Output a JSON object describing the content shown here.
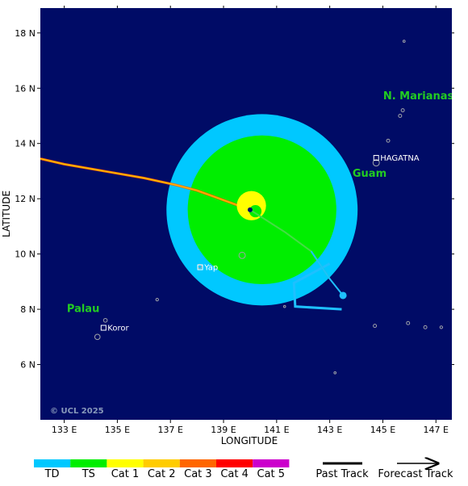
{
  "colors": {
    "ocean": "#000b66",
    "land": "#9fa3a8",
    "tropical_storm_radius": "#00c8ff",
    "hurricane_radius": "#00ee00",
    "region_label": "#22cc22",
    "past_track_line": "#ff6600",
    "forecast_track_line": "#1ec0ff"
  },
  "axes": {
    "xlabel": "LONGITUDE",
    "ylabel": "LATITUDE",
    "x_ticks": [
      "133 E",
      "135 E",
      "137 E",
      "139 E",
      "141 E",
      "143 E",
      "145 E",
      "147 E"
    ],
    "y_ticks": [
      "18 N",
      "16 N",
      "14 N",
      "12 N",
      "10 N",
      "8 N",
      "6 N"
    ]
  },
  "map": {
    "lon_range": [
      132.1,
      147.6
    ],
    "lat_range": [
      4.0,
      18.9
    ],
    "region_labels": [
      {
        "text": "N. Marianas Is",
        "lon": 146.6,
        "lat": 15.6,
        "anchor": "middle"
      },
      {
        "text": "Guam",
        "lon": 144.5,
        "lat": 12.8,
        "anchor": "middle"
      },
      {
        "text": "Palau",
        "lon": 133.1,
        "lat": 7.9,
        "anchor": "start"
      }
    ],
    "cities": [
      {
        "name": "HAGATNA",
        "lon": 144.75,
        "lat": 13.48
      },
      {
        "name": "Yap",
        "lon": 138.12,
        "lat": 9.52
      },
      {
        "name": "Koror",
        "lon": 134.48,
        "lat": 7.33
      }
    ],
    "islands": [
      {
        "lon": 144.75,
        "lat": 13.3,
        "r": 0.12
      },
      {
        "lon": 145.2,
        "lat": 14.1,
        "r": 0.06
      },
      {
        "lon": 145.65,
        "lat": 15.0,
        "r": 0.06
      },
      {
        "lon": 145.75,
        "lat": 15.2,
        "r": 0.06
      },
      {
        "lon": 145.8,
        "lat": 17.7,
        "r": 0.04
      },
      {
        "lon": 139.7,
        "lat": 9.95,
        "r": 0.12
      },
      {
        "lon": 138.1,
        "lat": 9.55,
        "r": 0.08
      },
      {
        "lon": 134.25,
        "lat": 7.0,
        "r": 0.1
      },
      {
        "lon": 134.55,
        "lat": 7.6,
        "r": 0.07
      },
      {
        "lon": 144.7,
        "lat": 7.4,
        "r": 0.06
      },
      {
        "lon": 145.95,
        "lat": 7.5,
        "r": 0.06
      },
      {
        "lon": 146.6,
        "lat": 7.35,
        "r": 0.06
      },
      {
        "lon": 147.2,
        "lat": 7.35,
        "r": 0.05
      },
      {
        "lon": 136.5,
        "lat": 8.35,
        "r": 0.05
      },
      {
        "lon": 141.3,
        "lat": 8.1,
        "r": 0.04
      },
      {
        "lon": 143.2,
        "lat": 5.7,
        "r": 0.04
      }
    ],
    "copyright": "© UCL 2025"
  },
  "storm": {
    "center": {
      "lon": 140.0,
      "lat": 11.6
    },
    "tropical_storm_wind_radius_deg": 3.6,
    "hurricane_wind_radius_deg": 2.8,
    "wind_radii_center": {
      "lon": 140.45,
      "lat": 11.6
    },
    "intensity_marker": {
      "lon": 140.05,
      "lat": 11.75,
      "r_deg": 0.55
    },
    "past_track": [
      [
        132.1,
        13.45
      ],
      [
        133.0,
        13.25
      ],
      [
        134.5,
        13.0
      ],
      [
        136.0,
        12.75
      ],
      [
        137.2,
        12.5
      ],
      [
        138.0,
        12.3
      ],
      [
        139.0,
        11.95
      ],
      [
        140.0,
        11.6
      ]
    ],
    "forecast_track": [
      [
        140.0,
        11.6
      ],
      [
        141.3,
        10.8
      ],
      [
        142.3,
        10.1
      ],
      [
        143.0,
        9.1
      ],
      [
        143.5,
        8.5
      ]
    ],
    "forecast_marker": {
      "lon": 143.5,
      "lat": 8.5
    },
    "cone": [
      [
        143.0,
        9.65
      ],
      [
        141.65,
        8.95
      ],
      [
        141.7,
        8.1
      ],
      [
        143.45,
        8.0
      ]
    ]
  },
  "legend": {
    "categories": [
      {
        "label": "TD",
        "color": "#00c8ff"
      },
      {
        "label": "TS",
        "color": "#00ee00"
      },
      {
        "label": "Cat 1",
        "color": "#ffff00"
      },
      {
        "label": "Cat 2",
        "color": "#ffcc00"
      },
      {
        "label": "Cat 3",
        "color": "#ff6600"
      },
      {
        "label": "Cat 4",
        "color": "#ff0000"
      },
      {
        "label": "Cat 5",
        "color": "#cc00cc"
      }
    ],
    "past_track_label": "Past Track",
    "forecast_track_label": "Forecast Track"
  }
}
